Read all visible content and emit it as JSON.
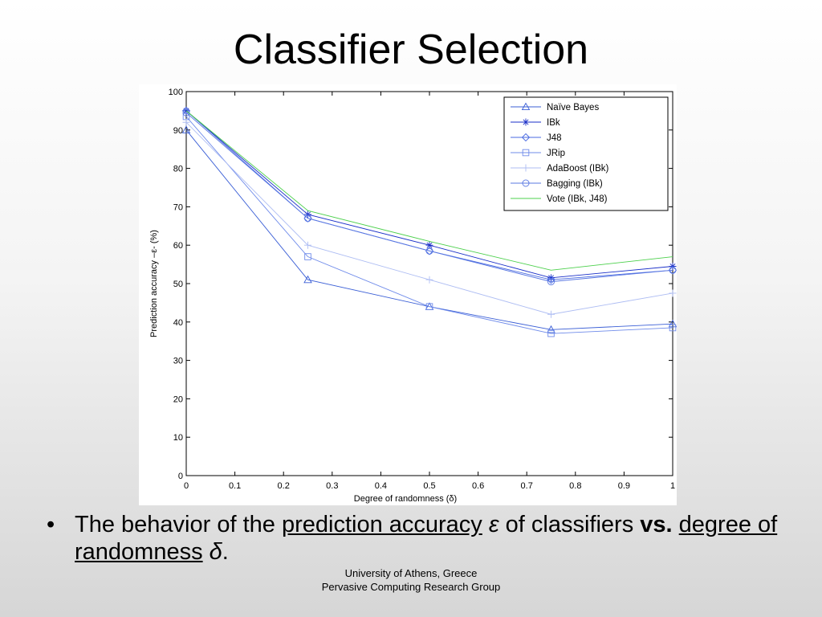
{
  "slide": {
    "title": "Classifier Selection",
    "bullet_symbol": "•",
    "bullet": {
      "part1": "The behavior of the ",
      "part2": "prediction accuracy",
      "part3": " ",
      "part4": "ε",
      "part5": " of classifiers ",
      "part6": "vs.",
      "part7": " ",
      "part8": "degree of randomness",
      "part9": " ",
      "part10": "δ",
      "part11": "."
    },
    "footer_line1": "University of Athens, Greece",
    "footer_line2": "Pervasive Computing Research Group"
  },
  "chart_data": {
    "type": "line",
    "xlabel": "Degree of randomness (δ)",
    "ylabel": "Prediction accuracy –ε- (%)",
    "xlim": [
      0,
      1
    ],
    "ylim": [
      0,
      100
    ],
    "x_ticks": [
      "0",
      "0.1",
      "0.2",
      "0.3",
      "0.4",
      "0.5",
      "0.6",
      "0.7",
      "0.8",
      "0.9",
      "1"
    ],
    "y_ticks": [
      "0",
      "10",
      "20",
      "30",
      "40",
      "50",
      "60",
      "70",
      "80",
      "90",
      "100"
    ],
    "x": [
      0,
      0.25,
      0.5,
      0.75,
      1
    ],
    "legend_position": "top-right",
    "grid": false,
    "series": [
      {
        "name": "Naïve Bayes",
        "marker": "triangle",
        "color": "#3b5fd6",
        "values": [
          90,
          51,
          44,
          38,
          39.5
        ]
      },
      {
        "name": "IBk",
        "marker": "star",
        "color": "#1a2fc8",
        "values": [
          95,
          68,
          60,
          51.5,
          54.5
        ]
      },
      {
        "name": "J48",
        "marker": "diamond",
        "color": "#4a6ae0",
        "values": [
          95,
          67,
          58.5,
          51,
          53.5
        ]
      },
      {
        "name": "JRip",
        "marker": "square",
        "color": "#6f8bea",
        "values": [
          93.5,
          57,
          44,
          37,
          38.5
        ]
      },
      {
        "name": "AdaBoost (IBk)",
        "marker": "plus",
        "color": "#aebdf3",
        "values": [
          92,
          60,
          51,
          42,
          47.5
        ]
      },
      {
        "name": "Bagging (IBk)",
        "marker": "circle",
        "color": "#5a78e2",
        "values": [
          94.5,
          67,
          58.5,
          50.5,
          53.5
        ]
      },
      {
        "name": "Vote (IBk, J48)",
        "marker": "none",
        "color": "#4cd04c",
        "values": [
          95,
          69,
          61,
          53.5,
          57
        ]
      }
    ]
  }
}
